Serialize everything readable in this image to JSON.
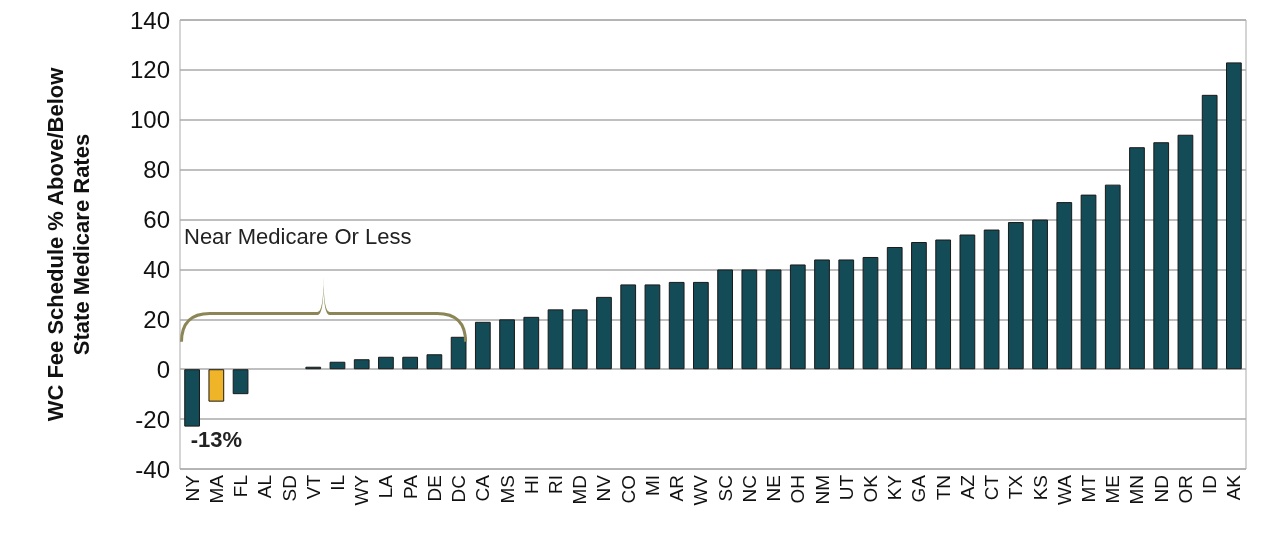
{
  "chart_data": {
    "type": "bar",
    "ylabel": "WC Fee Schedule % Above/Below State Medicare Rates",
    "categories": [
      "NY",
      "MA",
      "FL",
      "AL",
      "SD",
      "VT",
      "IL",
      "WY",
      "LA",
      "PA",
      "DE",
      "DC",
      "CA",
      "MS",
      "HI",
      "RI",
      "MD",
      "NV",
      "CO",
      "MI",
      "AR",
      "WV",
      "SC",
      "NC",
      "NE",
      "OH",
      "NM",
      "UT",
      "OK",
      "KY",
      "GA",
      "TN",
      "AZ",
      "CT",
      "TX",
      "KS",
      "WA",
      "MT",
      "ME",
      "MN",
      "ND",
      "OR",
      "ID",
      "AK"
    ],
    "values": [
      -23,
      -13,
      -10,
      0,
      0,
      1,
      3,
      4,
      5,
      5,
      6,
      13,
      19,
      20,
      21,
      24,
      24,
      29,
      34,
      34,
      35,
      35,
      40,
      40,
      40,
      42,
      44,
      44,
      45,
      49,
      51,
      52,
      54,
      56,
      59,
      60,
      67,
      70,
      74,
      89,
      91,
      94,
      110,
      123
    ],
    "colors": [
      "#134b57",
      "#f0b429",
      "#134b57",
      "#134b57",
      "#134b57",
      "#134b57",
      "#134b57",
      "#134b57",
      "#134b57",
      "#134b57",
      "#134b57",
      "#134b57",
      "#134b57",
      "#134b57",
      "#134b57",
      "#134b57",
      "#134b57",
      "#134b57",
      "#134b57",
      "#134b57",
      "#134b57",
      "#134b57",
      "#134b57",
      "#134b57",
      "#134b57",
      "#134b57",
      "#134b57",
      "#134b57",
      "#134b57",
      "#134b57",
      "#134b57",
      "#134b57",
      "#134b57",
      "#134b57",
      "#134b57",
      "#134b57",
      "#134b57",
      "#134b57",
      "#134b57",
      "#134b57",
      "#134b57",
      "#134b57",
      "#134b57",
      "#134b57"
    ],
    "value_labels": [
      null,
      "-13%",
      null,
      null,
      null,
      null,
      null,
      null,
      null,
      null,
      null,
      null,
      null,
      null,
      null,
      null,
      null,
      null,
      null,
      null,
      null,
      null,
      null,
      null,
      null,
      null,
      null,
      null,
      null,
      null,
      null,
      null,
      null,
      null,
      null,
      null,
      null,
      null,
      null,
      null,
      null,
      null,
      null,
      null
    ],
    "annotations": [
      "Near Medicare Or Less"
    ],
    "ylim": [
      -40,
      140
    ],
    "yticks": [
      -40,
      -20,
      0,
      20,
      40,
      60,
      80,
      100,
      120,
      140
    ],
    "grid": "y"
  }
}
